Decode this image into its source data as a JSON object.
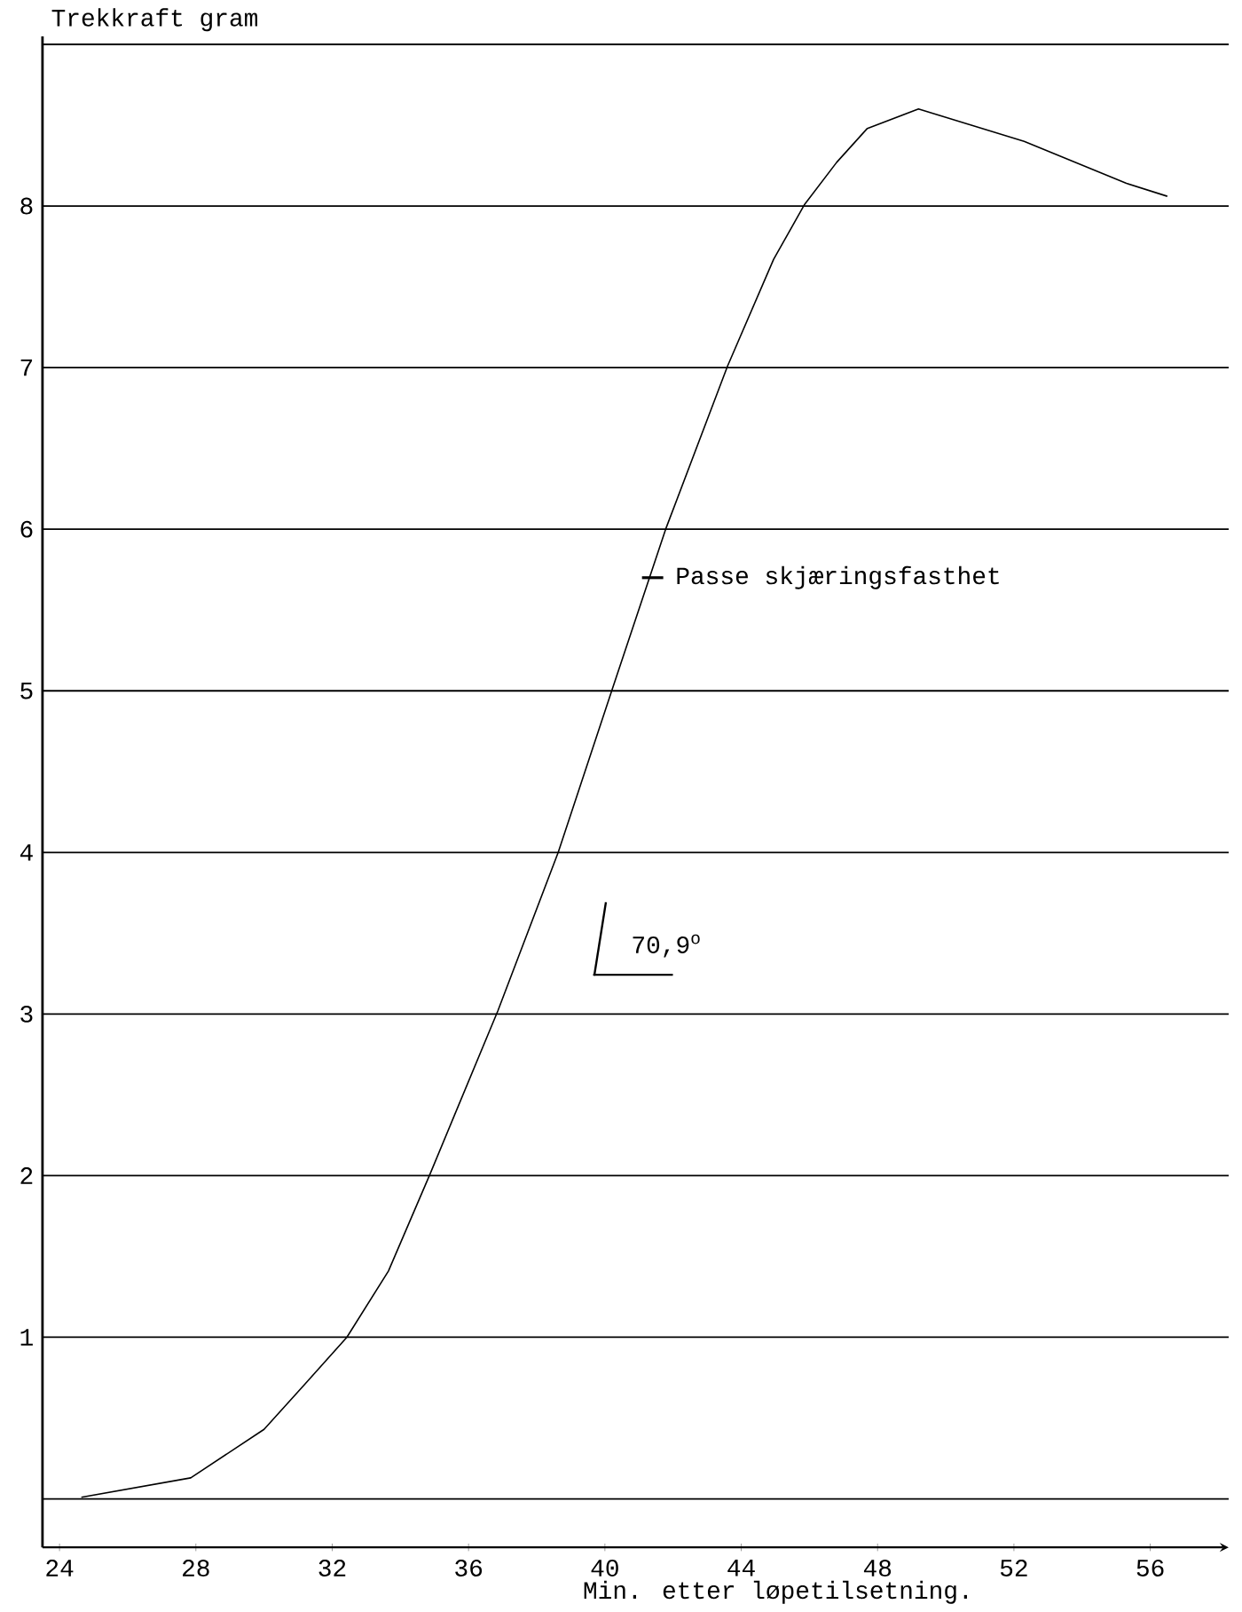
{
  "chart_data": {
    "type": "line",
    "xlabel": "Min. etter løpetilsetning.",
    "ylabel": "Trekkraft gram",
    "x": [
      24.64,
      27.85,
      30.0,
      31.2,
      32.43,
      33.65,
      34.87,
      36.86,
      38.63,
      40.2,
      41.8,
      43.6,
      44.95,
      45.86,
      46.8,
      47.7,
      49.2,
      50.75,
      52.3,
      53.8,
      55.3,
      56.5
    ],
    "values": [
      0.01,
      0.13,
      0.43,
      0.71,
      1.0,
      1.41,
      2.01,
      3.02,
      4.0,
      5.0,
      6.01,
      7.01,
      7.67,
      8.01,
      8.27,
      8.48,
      8.6,
      8.5,
      8.4,
      8.27,
      8.14,
      8.06
    ],
    "color": "#000000",
    "marker": "none",
    "line_style": "solid",
    "grid": "y",
    "xlim": [
      23.5,
      58.3
    ],
    "ylim": [
      -0.3,
      9.05
    ],
    "xticks": [
      24,
      28,
      32,
      36,
      40,
      44,
      48,
      52,
      56
    ],
    "yticks": [
      {
        "value": 0,
        "label": null
      },
      1,
      2,
      3,
      4,
      5,
      6,
      7,
      8,
      {
        "value": 9,
        "label": null
      }
    ],
    "annotations": [
      {
        "text": "Passe skjæringsfasthet",
        "x": 41.4,
        "y": 5.7
      },
      "70,9$^{o}$"
    ]
  }
}
